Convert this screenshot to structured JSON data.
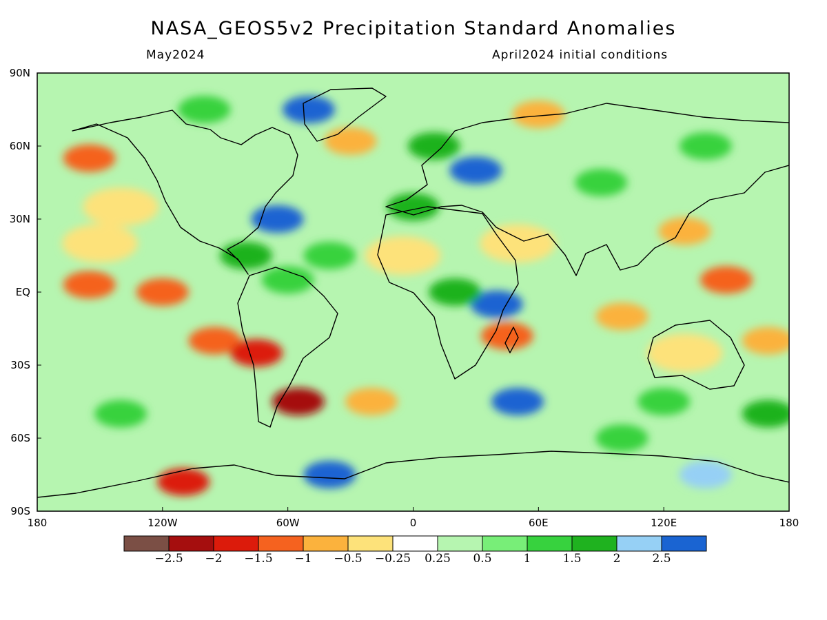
{
  "header": {
    "title": "NASA_GEOS5v2 Precipitation Standard Anomalies",
    "valid_month": "May2024",
    "initial_conditions": "April2024 initial conditions"
  },
  "map": {
    "projection": "equirectangular",
    "lon_range": [
      -180,
      180
    ],
    "lat_range": [
      -90,
      90
    ],
    "y_axis_labels": [
      {
        "lat": 90,
        "text": "90N"
      },
      {
        "lat": 60,
        "text": "60N"
      },
      {
        "lat": 30,
        "text": "30N"
      },
      {
        "lat": 0,
        "text": "EQ"
      },
      {
        "lat": -30,
        "text": "30S"
      },
      {
        "lat": -60,
        "text": "60S"
      },
      {
        "lat": -90,
        "text": "90S"
      }
    ],
    "x_axis_labels": [
      {
        "lon": -180,
        "text": "180"
      },
      {
        "lon": -120,
        "text": "120W"
      },
      {
        "lon": -60,
        "text": "60W"
      },
      {
        "lon": 0,
        "text": "0"
      },
      {
        "lon": 60,
        "text": "60E"
      },
      {
        "lon": 120,
        "text": "120E"
      },
      {
        "lon": 180,
        "text": "180"
      }
    ],
    "anomaly_regions": [
      {
        "lon": -155,
        "lat": 55,
        "anomaly": -1.5
      },
      {
        "lon": -140,
        "lat": 35,
        "anomaly": -0.5
      },
      {
        "lon": -120,
        "lat": 0,
        "anomaly": -1.5
      },
      {
        "lon": -155,
        "lat": 3,
        "anomaly": -1.5
      },
      {
        "lon": -95,
        "lat": -20,
        "anomaly": -1.5
      },
      {
        "lon": -75,
        "lat": -25,
        "anomaly": -2
      },
      {
        "lon": -55,
        "lat": -45,
        "anomaly": -2.5
      },
      {
        "lon": -110,
        "lat": -78,
        "anomaly": -2
      },
      {
        "lon": -30,
        "lat": 62,
        "anomaly": -1
      },
      {
        "lon": 60,
        "lat": 73,
        "anomaly": -1
      },
      {
        "lon": 150,
        "lat": 5,
        "anomaly": -1.5
      },
      {
        "lon": 130,
        "lat": 25,
        "anomaly": -1
      },
      {
        "lon": 130,
        "lat": -25,
        "anomaly": -0.5
      },
      {
        "lon": 170,
        "lat": -20,
        "anomaly": -1
      },
      {
        "lon": 100,
        "lat": -10,
        "anomaly": -1
      },
      {
        "lon": 45,
        "lat": -18,
        "anomaly": -1.5
      },
      {
        "lon": -20,
        "lat": -45,
        "anomaly": -1
      },
      {
        "lon": -5,
        "lat": 15,
        "anomaly": -0.5
      },
      {
        "lon": 50,
        "lat": 20,
        "anomaly": -0.5
      },
      {
        "lon": -150,
        "lat": 20,
        "anomaly": -0.5
      },
      {
        "lon": 30,
        "lat": 50,
        "anomaly": 2.5
      },
      {
        "lon": 40,
        "lat": -5,
        "anomaly": 2.5
      },
      {
        "lon": -65,
        "lat": 30,
        "anomaly": 2.5
      },
      {
        "lon": -50,
        "lat": 75,
        "anomaly": 2.5
      },
      {
        "lon": 50,
        "lat": -45,
        "anomaly": 2.5
      },
      {
        "lon": -40,
        "lat": -75,
        "anomaly": 2.5
      },
      {
        "lon": 140,
        "lat": -75,
        "anomaly": 2
      },
      {
        "lon": 10,
        "lat": 60,
        "anomaly": 1.5
      },
      {
        "lon": 90,
        "lat": 45,
        "anomaly": 1
      },
      {
        "lon": 0,
        "lat": 35,
        "anomaly": 1.5
      },
      {
        "lon": 20,
        "lat": 0,
        "anomaly": 1.5
      },
      {
        "lon": -40,
        "lat": 15,
        "anomaly": 1
      },
      {
        "lon": -80,
        "lat": 15,
        "anomaly": 1.5
      },
      {
        "lon": -140,
        "lat": -50,
        "anomaly": 1
      },
      {
        "lon": -60,
        "lat": 5,
        "anomaly": 1
      },
      {
        "lon": 120,
        "lat": -45,
        "anomaly": 1
      },
      {
        "lon": 170,
        "lat": -50,
        "anomaly": 1.5
      },
      {
        "lon": 100,
        "lat": -60,
        "anomaly": 1
      },
      {
        "lon": -100,
        "lat": 75,
        "anomaly": 1
      },
      {
        "lon": 140,
        "lat": 60,
        "anomaly": 1
      }
    ]
  },
  "colorbar": {
    "colors": [
      "#7b4f45",
      "#a50e0e",
      "#dc1b0b",
      "#f5621f",
      "#fbb23d",
      "#fde27a",
      "#ffffff",
      "#b6f5b0",
      "#78ee78",
      "#37d23e",
      "#1fb21f",
      "#96d0f5",
      "#1a64d2"
    ],
    "labels": [
      "−2.5",
      "−2",
      "−1.5",
      "−1",
      "−0.5",
      "−0.25",
      "0.25",
      "0.5",
      "1",
      "1.5",
      "2",
      "2.5"
    ]
  }
}
